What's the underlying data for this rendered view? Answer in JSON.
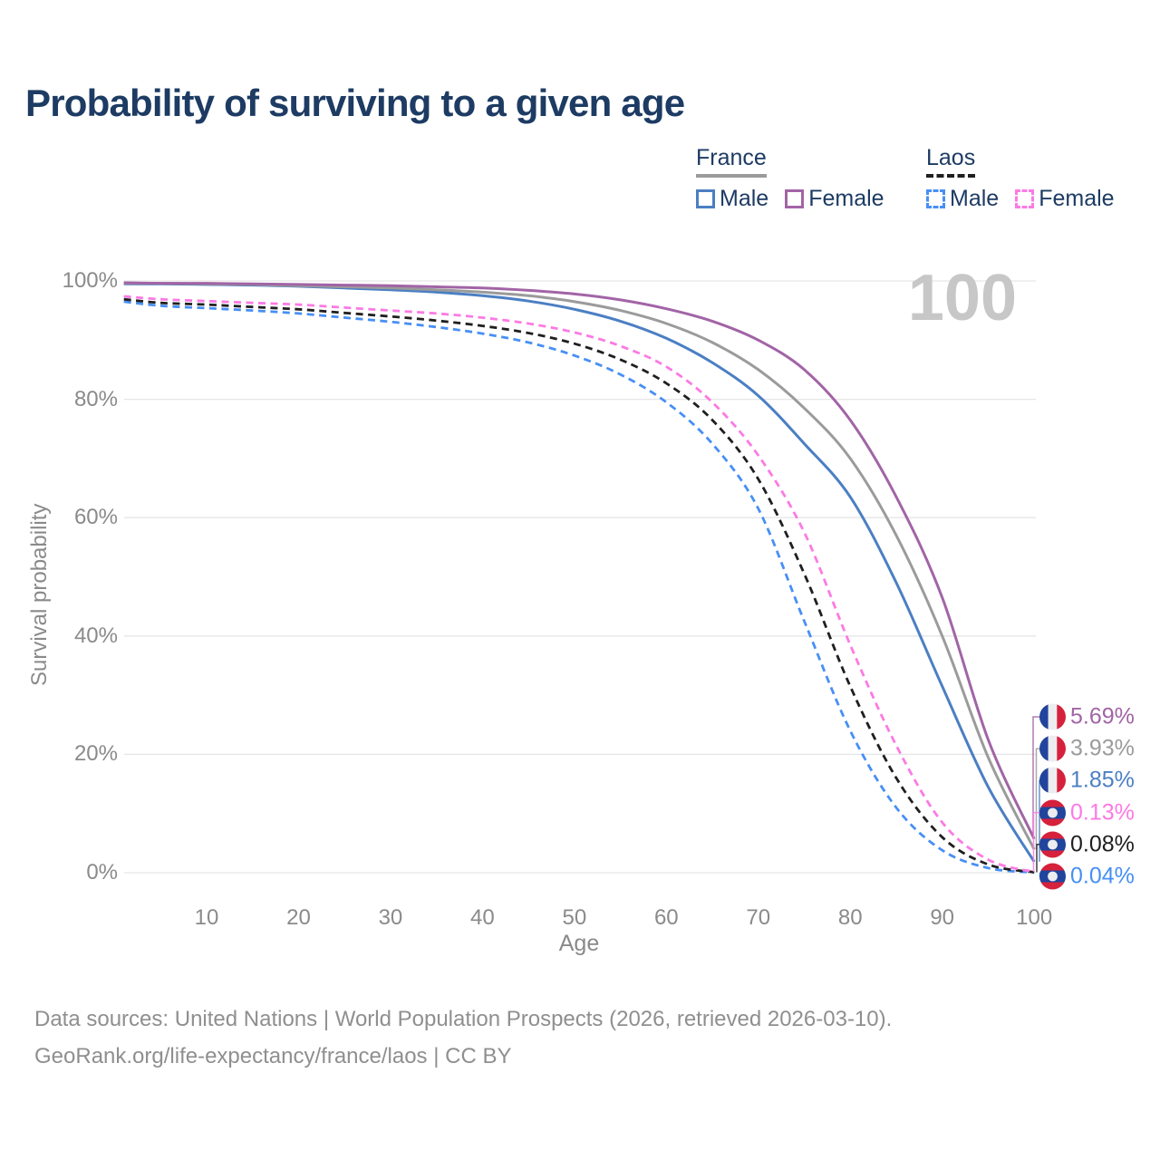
{
  "title": "Probability of surviving to a given age",
  "watermark_age": "100",
  "legend": {
    "groups": [
      {
        "country": "France",
        "line_style": "solid",
        "header_swatch_color": "#9b9b9b",
        "items": [
          {
            "label": "Male",
            "color": "#4b7fc3",
            "dashed": false
          },
          {
            "label": "Female",
            "color": "#a264a6",
            "dashed": false
          }
        ]
      },
      {
        "country": "Laos",
        "line_style": "dashed",
        "header_swatch_color": "#1f1f1f",
        "items": [
          {
            "label": "Male",
            "color": "#478ff5",
            "dashed": true
          },
          {
            "label": "Female",
            "color": "#fc7ae4",
            "dashed": true
          }
        ]
      }
    ]
  },
  "chart_data": {
    "type": "line",
    "title": "Probability of surviving to a given age",
    "xlabel": "Age",
    "ylabel": "Survival probability",
    "x": [
      1,
      5,
      10,
      15,
      20,
      25,
      30,
      35,
      40,
      45,
      50,
      55,
      60,
      65,
      70,
      75,
      80,
      85,
      90,
      95,
      100
    ],
    "x_ticks": [
      10,
      20,
      30,
      40,
      50,
      60,
      70,
      80,
      90,
      100
    ],
    "y_ticks_pct": [
      0,
      20,
      40,
      60,
      80,
      100
    ],
    "xlim": [
      1,
      100
    ],
    "ylim": [
      0,
      100
    ],
    "grid": "horizontal",
    "legend_position": "top-right",
    "series": [
      {
        "name": "Laos Male",
        "country": "Laos",
        "sex": "male",
        "color": "#478ff5",
        "dashed": true,
        "end_label": "0.04%",
        "values": [
          96.5,
          95.8,
          95.4,
          95.0,
          94.5,
          93.8,
          93.1,
          92.2,
          91.1,
          89.6,
          87.4,
          84.2,
          79.5,
          72.5,
          61.5,
          42.5,
          24.0,
          11.0,
          3.8,
          0.8,
          0.04
        ]
      },
      {
        "name": "Laos Both sexes",
        "country": "Laos",
        "sex": "both",
        "color": "#1f1f1f",
        "dashed": true,
        "end_label": "0.08%",
        "values": [
          96.9,
          96.3,
          96.0,
          95.6,
          95.2,
          94.6,
          94.0,
          93.3,
          92.4,
          91.2,
          89.4,
          86.7,
          82.7,
          76.5,
          66.5,
          50.5,
          31.5,
          16.0,
          6.0,
          1.4,
          0.08
        ]
      },
      {
        "name": "Laos Female",
        "country": "Laos",
        "sex": "female",
        "color": "#fc7ae4",
        "dashed": true,
        "end_label": "0.13%",
        "values": [
          97.4,
          96.9,
          96.6,
          96.3,
          96.0,
          95.5,
          95.0,
          94.5,
          93.8,
          92.8,
          91.3,
          89.0,
          85.5,
          79.5,
          70.5,
          57.5,
          38.5,
          21.5,
          8.5,
          2.2,
          0.13
        ]
      },
      {
        "name": "France Male",
        "country": "France",
        "sex": "male",
        "color": "#4b7fc3",
        "dashed": false,
        "end_label": "1.85%",
        "values": [
          99.5,
          99.5,
          99.4,
          99.3,
          99.1,
          98.8,
          98.5,
          98.1,
          97.5,
          96.6,
          95.2,
          93.2,
          90.3,
          86.2,
          80.6,
          72.5,
          63.5,
          49.0,
          31.5,
          14.5,
          1.85
        ]
      },
      {
        "name": "France Both sexes",
        "country": "France",
        "sex": "both",
        "color": "#9b9b9b",
        "dashed": false,
        "end_label": "3.93%",
        "values": [
          99.6,
          99.6,
          99.5,
          99.4,
          99.2,
          99.0,
          98.8,
          98.5,
          98.1,
          97.5,
          96.5,
          95.0,
          92.8,
          89.6,
          85.0,
          78.5,
          70.0,
          57.0,
          40.0,
          19.5,
          3.93
        ]
      },
      {
        "name": "France Female",
        "country": "France",
        "sex": "female",
        "color": "#a264a6",
        "dashed": false,
        "end_label": "5.69%",
        "values": [
          99.7,
          99.6,
          99.6,
          99.5,
          99.4,
          99.3,
          99.2,
          99.0,
          98.8,
          98.4,
          97.8,
          96.8,
          95.3,
          93.2,
          90.0,
          85.0,
          76.5,
          63.5,
          46.5,
          22.5,
          5.69
        ]
      }
    ]
  },
  "colors": {
    "title_text": "#1d3b63",
    "axis_text": "#8a8a8a",
    "gridline": "#e6e6e6",
    "watermark": "#c7c7c7",
    "flag_france": {
      "blue": "#21449c",
      "white": "#ededef",
      "red": "#d6213c"
    },
    "flag_laos": {
      "red": "#d6213c",
      "blue": "#21449c",
      "white": "#ededef"
    }
  },
  "footer": {
    "line1": "Data sources: United Nations | World Population Prospects (2026, retrieved 2026-03-10).",
    "line2": "GeoRank.org/life-expectancy/france/laos | CC BY"
  }
}
